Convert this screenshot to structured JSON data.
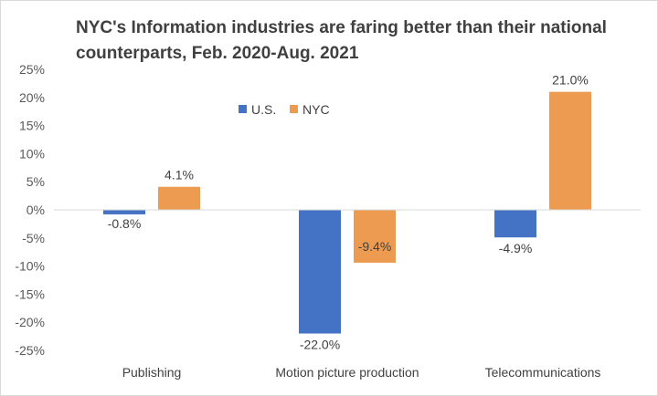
{
  "chart_data": {
    "type": "bar",
    "title": "NYC's Information industries are faring better than their national counterparts, Feb. 2020-Aug. 2021",
    "xlabel": "",
    "ylabel": "",
    "categories": [
      "Publishing",
      "Motion picture production",
      "Telecommunications"
    ],
    "series": [
      {
        "name": "U.S.",
        "values": [
          -0.8,
          -22.0,
          -4.9
        ],
        "labels": [
          "-0.8%",
          "-22.0%",
          "-4.9%"
        ],
        "color": "#4472c4"
      },
      {
        "name": "NYC",
        "values": [
          4.1,
          -9.4,
          21.0
        ],
        "labels": [
          "4.1%",
          "-9.4%",
          "21.0%"
        ],
        "color": "#ed9b51"
      }
    ],
    "ylim": [
      -25,
      25
    ],
    "yticks": [
      25,
      20,
      15,
      10,
      5,
      0,
      -5,
      -10,
      -15,
      -20,
      -25
    ],
    "ytick_labels": [
      "25%",
      "20%",
      "15%",
      "10%",
      "5%",
      "0%",
      "-5%",
      "-10%",
      "-15%",
      "-20%",
      "-25%"
    ],
    "grid": false,
    "legend_position": "top-center"
  }
}
